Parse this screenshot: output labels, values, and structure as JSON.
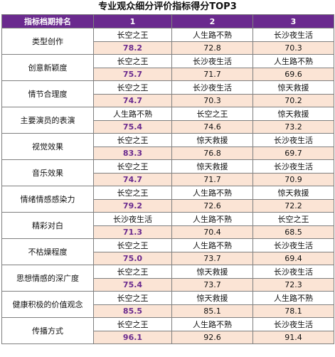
{
  "title": "专业观众细分评价指标得分TOP3",
  "header": {
    "metric": "指标档期排名",
    "rank1": "1",
    "rank2": "2",
    "rank3": "3"
  },
  "colors": {
    "header_bg": "#6a2a8e",
    "score_bg": "#fbe4d5",
    "top_score_text": "#6a2a8e"
  },
  "rows": [
    {
      "metric": "类型创作",
      "names": [
        "长空之王",
        "人生路不熟",
        "长沙夜生活"
      ],
      "scores": [
        "78.2",
        "72.8",
        "70.3"
      ]
    },
    {
      "metric": "创意新颖度",
      "names": [
        "长空之王",
        "长沙夜生活",
        "人生路不熟"
      ],
      "scores": [
        "75.7",
        "71.7",
        "69.6"
      ]
    },
    {
      "metric": "情节合理度",
      "names": [
        "长空之王",
        "长沙夜生活",
        "惊天救援"
      ],
      "scores": [
        "74.7",
        "70.3",
        "70.2"
      ]
    },
    {
      "metric": "主要演员的表演",
      "names": [
        "人生路不熟",
        "长空之王",
        "惊天救援"
      ],
      "scores": [
        "75.4",
        "74.6",
        "73.2"
      ]
    },
    {
      "metric": "视觉效果",
      "names": [
        "长空之王",
        "惊天救援",
        "长沙夜生活"
      ],
      "scores": [
        "83.3",
        "76.8",
        "69.7"
      ]
    },
    {
      "metric": "音乐效果",
      "names": [
        "长空之王",
        "惊天救援",
        "长沙夜生活"
      ],
      "scores": [
        "74.7",
        "71.7",
        "70.9"
      ]
    },
    {
      "metric": "情绪情感感染力",
      "names": [
        "长空之王",
        "人生路不熟",
        "惊天救援"
      ],
      "scores": [
        "79.2",
        "72.6",
        "72.2"
      ]
    },
    {
      "metric": "精彩对白",
      "names": [
        "长沙夜生活",
        "人生路不熟",
        "长空之王"
      ],
      "scores": [
        "71.3",
        "70.4",
        "68.5"
      ]
    },
    {
      "metric": "不枯燥程度",
      "names": [
        "长空之王",
        "人生路不熟",
        "长沙夜生活"
      ],
      "scores": [
        "75.0",
        "73.7",
        "69.4"
      ]
    },
    {
      "metric": "思想情感的深广度",
      "names": [
        "长空之王",
        "惊天救援",
        "长沙夜生活"
      ],
      "scores": [
        "75.4",
        "73.7",
        "72.3"
      ]
    },
    {
      "metric": "健康积极的价值观念",
      "names": [
        "长空之王",
        "惊天救援",
        "人生路不熟"
      ],
      "scores": [
        "85.5",
        "85.1",
        "78.1"
      ]
    },
    {
      "metric": "传播方式",
      "names": [
        "长空之王",
        "人生路不熟",
        "长沙夜生活"
      ],
      "scores": [
        "96.1",
        "92.6",
        "91.4"
      ]
    }
  ]
}
